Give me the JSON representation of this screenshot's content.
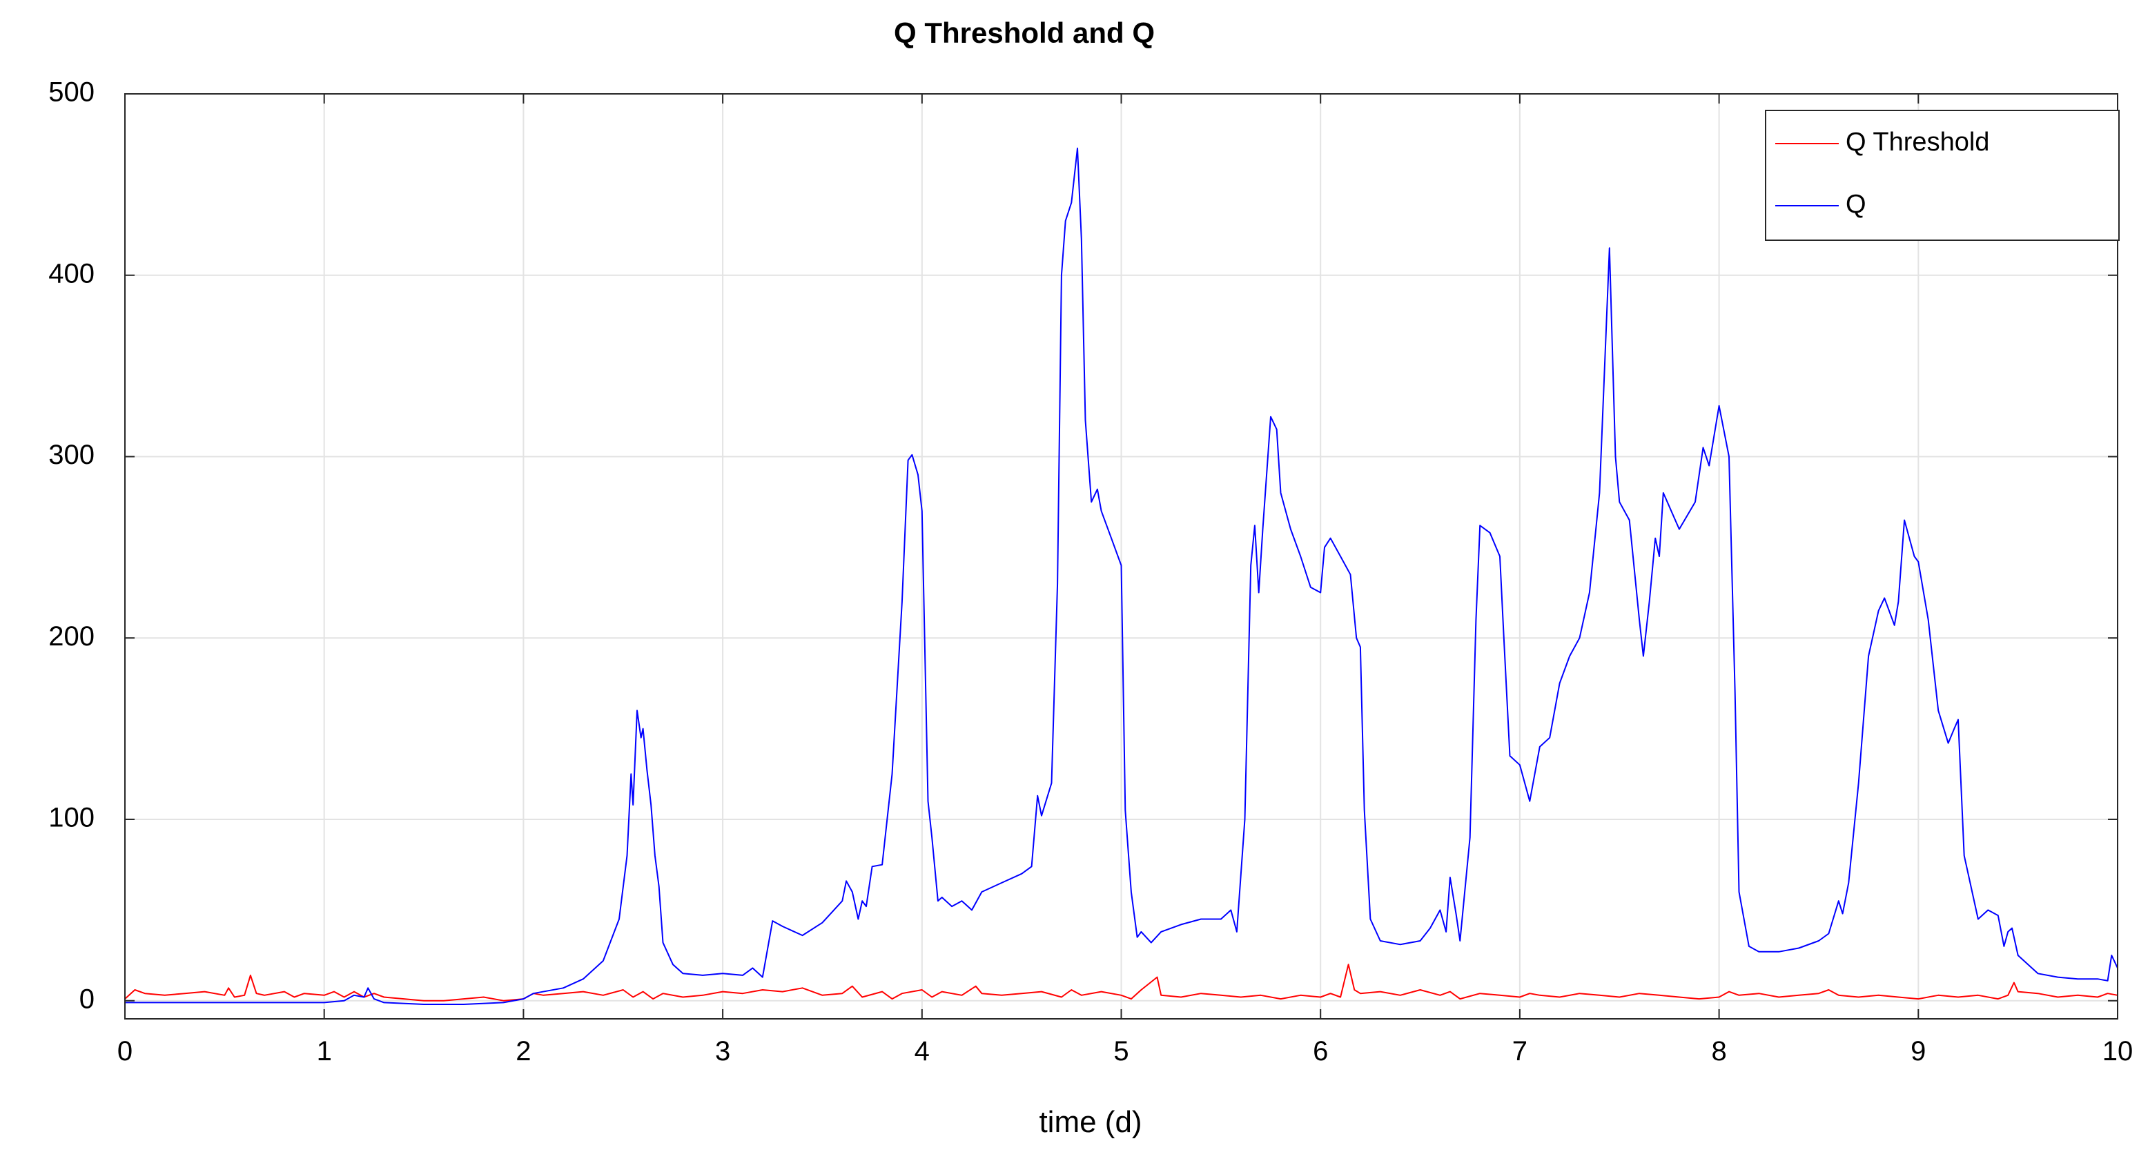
{
  "chart_data": {
    "type": "line",
    "title": "Q Threshold and Q",
    "xlabel": "time (d)",
    "ylabel": "",
    "xlim": [
      0,
      10
    ],
    "ylim": [
      -10,
      500
    ],
    "xticks": [
      "0",
      "1",
      "2",
      "3",
      "4",
      "5",
      "6",
      "7",
      "8",
      "9",
      "10"
    ],
    "yticks": [
      "0",
      "100",
      "200",
      "300",
      "400",
      "500"
    ],
    "grid": true,
    "legend_position": "top-right",
    "series": [
      {
        "name": "Q Threshold",
        "color": "#ff0000",
        "points": [
          [
            0,
            1
          ],
          [
            0.05,
            6
          ],
          [
            0.1,
            4
          ],
          [
            0.2,
            3
          ],
          [
            0.3,
            4
          ],
          [
            0.4,
            5
          ],
          [
            0.5,
            3
          ],
          [
            0.52,
            7
          ],
          [
            0.55,
            2
          ],
          [
            0.6,
            3
          ],
          [
            0.63,
            14
          ],
          [
            0.66,
            4
          ],
          [
            0.7,
            3
          ],
          [
            0.8,
            5
          ],
          [
            0.85,
            2
          ],
          [
            0.9,
            4
          ],
          [
            1.0,
            3
          ],
          [
            1.05,
            5
          ],
          [
            1.1,
            2
          ],
          [
            1.15,
            5
          ],
          [
            1.2,
            2
          ],
          [
            1.25,
            4
          ],
          [
            1.3,
            2
          ],
          [
            1.4,
            1
          ],
          [
            1.5,
            0
          ],
          [
            1.6,
            0
          ],
          [
            1.7,
            1
          ],
          [
            1.8,
            2
          ],
          [
            1.9,
            0
          ],
          [
            2.0,
            1
          ],
          [
            2.05,
            4
          ],
          [
            2.1,
            3
          ],
          [
            2.2,
            4
          ],
          [
            2.3,
            5
          ],
          [
            2.4,
            3
          ],
          [
            2.5,
            6
          ],
          [
            2.55,
            2
          ],
          [
            2.6,
            5
          ],
          [
            2.65,
            1
          ],
          [
            2.7,
            4
          ],
          [
            2.8,
            2
          ],
          [
            2.9,
            3
          ],
          [
            3.0,
            5
          ],
          [
            3.1,
            4
          ],
          [
            3.2,
            6
          ],
          [
            3.3,
            5
          ],
          [
            3.4,
            7
          ],
          [
            3.45,
            5
          ],
          [
            3.5,
            3
          ],
          [
            3.6,
            4
          ],
          [
            3.65,
            8
          ],
          [
            3.7,
            2
          ],
          [
            3.8,
            5
          ],
          [
            3.85,
            1
          ],
          [
            3.9,
            4
          ],
          [
            4.0,
            6
          ],
          [
            4.05,
            2
          ],
          [
            4.1,
            5
          ],
          [
            4.2,
            3
          ],
          [
            4.27,
            8
          ],
          [
            4.3,
            4
          ],
          [
            4.4,
            3
          ],
          [
            4.5,
            4
          ],
          [
            4.6,
            5
          ],
          [
            4.7,
            2
          ],
          [
            4.75,
            6
          ],
          [
            4.8,
            3
          ],
          [
            4.9,
            5
          ],
          [
            5.0,
            3
          ],
          [
            5.05,
            1
          ],
          [
            5.1,
            6
          ],
          [
            5.18,
            13
          ],
          [
            5.2,
            3
          ],
          [
            5.3,
            2
          ],
          [
            5.4,
            4
          ],
          [
            5.5,
            3
          ],
          [
            5.6,
            2
          ],
          [
            5.7,
            3
          ],
          [
            5.8,
            1
          ],
          [
            5.9,
            3
          ],
          [
            6.0,
            2
          ],
          [
            6.05,
            4
          ],
          [
            6.1,
            2
          ],
          [
            6.14,
            20
          ],
          [
            6.17,
            6
          ],
          [
            6.2,
            4
          ],
          [
            6.3,
            5
          ],
          [
            6.4,
            3
          ],
          [
            6.5,
            6
          ],
          [
            6.6,
            3
          ],
          [
            6.65,
            5
          ],
          [
            6.7,
            1
          ],
          [
            6.8,
            4
          ],
          [
            6.9,
            3
          ],
          [
            7.0,
            2
          ],
          [
            7.05,
            4
          ],
          [
            7.1,
            3
          ],
          [
            7.2,
            2
          ],
          [
            7.3,
            4
          ],
          [
            7.4,
            3
          ],
          [
            7.5,
            2
          ],
          [
            7.6,
            4
          ],
          [
            7.7,
            3
          ],
          [
            7.8,
            2
          ],
          [
            7.9,
            1
          ],
          [
            8.0,
            2
          ],
          [
            8.05,
            5
          ],
          [
            8.1,
            3
          ],
          [
            8.2,
            4
          ],
          [
            8.3,
            2
          ],
          [
            8.4,
            3
          ],
          [
            8.5,
            4
          ],
          [
            8.55,
            6
          ],
          [
            8.6,
            3
          ],
          [
            8.7,
            2
          ],
          [
            8.8,
            3
          ],
          [
            8.9,
            2
          ],
          [
            9.0,
            1
          ],
          [
            9.1,
            3
          ],
          [
            9.2,
            2
          ],
          [
            9.3,
            3
          ],
          [
            9.4,
            1
          ],
          [
            9.45,
            3
          ],
          [
            9.48,
            10
          ],
          [
            9.5,
            5
          ],
          [
            9.6,
            4
          ],
          [
            9.7,
            2
          ],
          [
            9.8,
            3
          ],
          [
            9.9,
            2
          ],
          [
            9.95,
            4
          ],
          [
            10.0,
            3
          ]
        ]
      },
      {
        "name": "Q",
        "color": "#0000ff",
        "points": [
          [
            0,
            -1
          ],
          [
            0.5,
            -1
          ],
          [
            1.0,
            -1
          ],
          [
            1.1,
            0
          ],
          [
            1.15,
            3
          ],
          [
            1.2,
            2
          ],
          [
            1.22,
            7
          ],
          [
            1.25,
            1
          ],
          [
            1.3,
            -1
          ],
          [
            1.5,
            -2
          ],
          [
            1.7,
            -2
          ],
          [
            1.9,
            -1
          ],
          [
            2.0,
            1
          ],
          [
            2.05,
            4
          ],
          [
            2.2,
            7
          ],
          [
            2.3,
            12
          ],
          [
            2.4,
            22
          ],
          [
            2.48,
            45
          ],
          [
            2.52,
            80
          ],
          [
            2.54,
            125
          ],
          [
            2.55,
            108
          ],
          [
            2.57,
            160
          ],
          [
            2.59,
            145
          ],
          [
            2.6,
            150
          ],
          [
            2.62,
            127
          ],
          [
            2.64,
            108
          ],
          [
            2.66,
            80
          ],
          [
            2.68,
            63
          ],
          [
            2.7,
            32
          ],
          [
            2.75,
            20
          ],
          [
            2.8,
            15
          ],
          [
            2.9,
            14
          ],
          [
            3.0,
            15
          ],
          [
            3.1,
            14
          ],
          [
            3.15,
            18
          ],
          [
            3.2,
            13
          ],
          [
            3.25,
            44
          ],
          [
            3.3,
            41
          ],
          [
            3.4,
            36
          ],
          [
            3.5,
            43
          ],
          [
            3.6,
            55
          ],
          [
            3.62,
            66
          ],
          [
            3.65,
            60
          ],
          [
            3.68,
            45
          ],
          [
            3.7,
            55
          ],
          [
            3.72,
            52
          ],
          [
            3.75,
            74
          ],
          [
            3.8,
            75
          ],
          [
            3.85,
            125
          ],
          [
            3.9,
            220
          ],
          [
            3.93,
            298
          ],
          [
            3.95,
            301
          ],
          [
            3.98,
            290
          ],
          [
            4.0,
            270
          ],
          [
            4.03,
            110
          ],
          [
            4.05,
            90
          ],
          [
            4.08,
            55
          ],
          [
            4.1,
            57
          ],
          [
            4.15,
            52
          ],
          [
            4.2,
            55
          ],
          [
            4.25,
            50
          ],
          [
            4.3,
            60
          ],
          [
            4.4,
            65
          ],
          [
            4.5,
            70
          ],
          [
            4.55,
            74
          ],
          [
            4.58,
            113
          ],
          [
            4.6,
            102
          ],
          [
            4.65,
            120
          ],
          [
            4.68,
            230
          ],
          [
            4.7,
            400
          ],
          [
            4.72,
            430
          ],
          [
            4.75,
            440
          ],
          [
            4.78,
            470
          ],
          [
            4.8,
            420
          ],
          [
            4.82,
            320
          ],
          [
            4.85,
            275
          ],
          [
            4.88,
            282
          ],
          [
            4.9,
            270
          ],
          [
            4.95,
            255
          ],
          [
            5.0,
            240
          ],
          [
            5.02,
            105
          ],
          [
            5.05,
            60
          ],
          [
            5.08,
            35
          ],
          [
            5.1,
            38
          ],
          [
            5.15,
            32
          ],
          [
            5.2,
            38
          ],
          [
            5.3,
            42
          ],
          [
            5.4,
            45
          ],
          [
            5.5,
            45
          ],
          [
            5.55,
            50
          ],
          [
            5.58,
            38
          ],
          [
            5.62,
            100
          ],
          [
            5.65,
            240
          ],
          [
            5.67,
            262
          ],
          [
            5.69,
            225
          ],
          [
            5.71,
            260
          ],
          [
            5.75,
            322
          ],
          [
            5.78,
            315
          ],
          [
            5.8,
            280
          ],
          [
            5.85,
            260
          ],
          [
            5.9,
            245
          ],
          [
            5.95,
            228
          ],
          [
            6.0,
            225
          ],
          [
            6.02,
            250
          ],
          [
            6.05,
            255
          ],
          [
            6.1,
            245
          ],
          [
            6.15,
            235
          ],
          [
            6.18,
            200
          ],
          [
            6.2,
            195
          ],
          [
            6.22,
            105
          ],
          [
            6.25,
            45
          ],
          [
            6.3,
            33
          ],
          [
            6.4,
            31
          ],
          [
            6.5,
            33
          ],
          [
            6.55,
            40
          ],
          [
            6.6,
            50
          ],
          [
            6.63,
            38
          ],
          [
            6.65,
            68
          ],
          [
            6.68,
            48
          ],
          [
            6.7,
            33
          ],
          [
            6.75,
            90
          ],
          [
            6.78,
            210
          ],
          [
            6.8,
            262
          ],
          [
            6.85,
            258
          ],
          [
            6.9,
            245
          ],
          [
            6.92,
            200
          ],
          [
            6.95,
            135
          ],
          [
            7.0,
            130
          ],
          [
            7.05,
            110
          ],
          [
            7.1,
            140
          ],
          [
            7.15,
            145
          ],
          [
            7.2,
            175
          ],
          [
            7.25,
            190
          ],
          [
            7.3,
            200
          ],
          [
            7.35,
            225
          ],
          [
            7.4,
            280
          ],
          [
            7.45,
            415
          ],
          [
            7.48,
            300
          ],
          [
            7.5,
            275
          ],
          [
            7.55,
            265
          ],
          [
            7.6,
            210
          ],
          [
            7.62,
            190
          ],
          [
            7.65,
            220
          ],
          [
            7.68,
            255
          ],
          [
            7.7,
            245
          ],
          [
            7.72,
            280
          ],
          [
            7.8,
            260
          ],
          [
            7.88,
            275
          ],
          [
            7.92,
            305
          ],
          [
            7.95,
            295
          ],
          [
            8.0,
            328
          ],
          [
            8.05,
            300
          ],
          [
            8.08,
            170
          ],
          [
            8.1,
            60
          ],
          [
            8.15,
            30
          ],
          [
            8.2,
            27
          ],
          [
            8.3,
            27
          ],
          [
            8.4,
            29
          ],
          [
            8.5,
            33
          ],
          [
            8.55,
            37
          ],
          [
            8.6,
            55
          ],
          [
            8.62,
            48
          ],
          [
            8.65,
            65
          ],
          [
            8.7,
            120
          ],
          [
            8.75,
            190
          ],
          [
            8.8,
            215
          ],
          [
            8.83,
            222
          ],
          [
            8.88,
            207
          ],
          [
            8.9,
            220
          ],
          [
            8.93,
            265
          ],
          [
            8.98,
            245
          ],
          [
            9.0,
            242
          ],
          [
            9.05,
            210
          ],
          [
            9.1,
            160
          ],
          [
            9.15,
            142
          ],
          [
            9.18,
            150
          ],
          [
            9.2,
            155
          ],
          [
            9.23,
            80
          ],
          [
            9.25,
            70
          ],
          [
            9.3,
            45
          ],
          [
            9.35,
            50
          ],
          [
            9.4,
            47
          ],
          [
            9.43,
            30
          ],
          [
            9.45,
            38
          ],
          [
            9.47,
            40
          ],
          [
            9.5,
            25
          ],
          [
            9.6,
            15
          ],
          [
            9.7,
            13
          ],
          [
            9.8,
            12
          ],
          [
            9.9,
            12
          ],
          [
            9.95,
            11
          ],
          [
            9.97,
            25
          ],
          [
            10.0,
            18
          ]
        ]
      }
    ]
  }
}
